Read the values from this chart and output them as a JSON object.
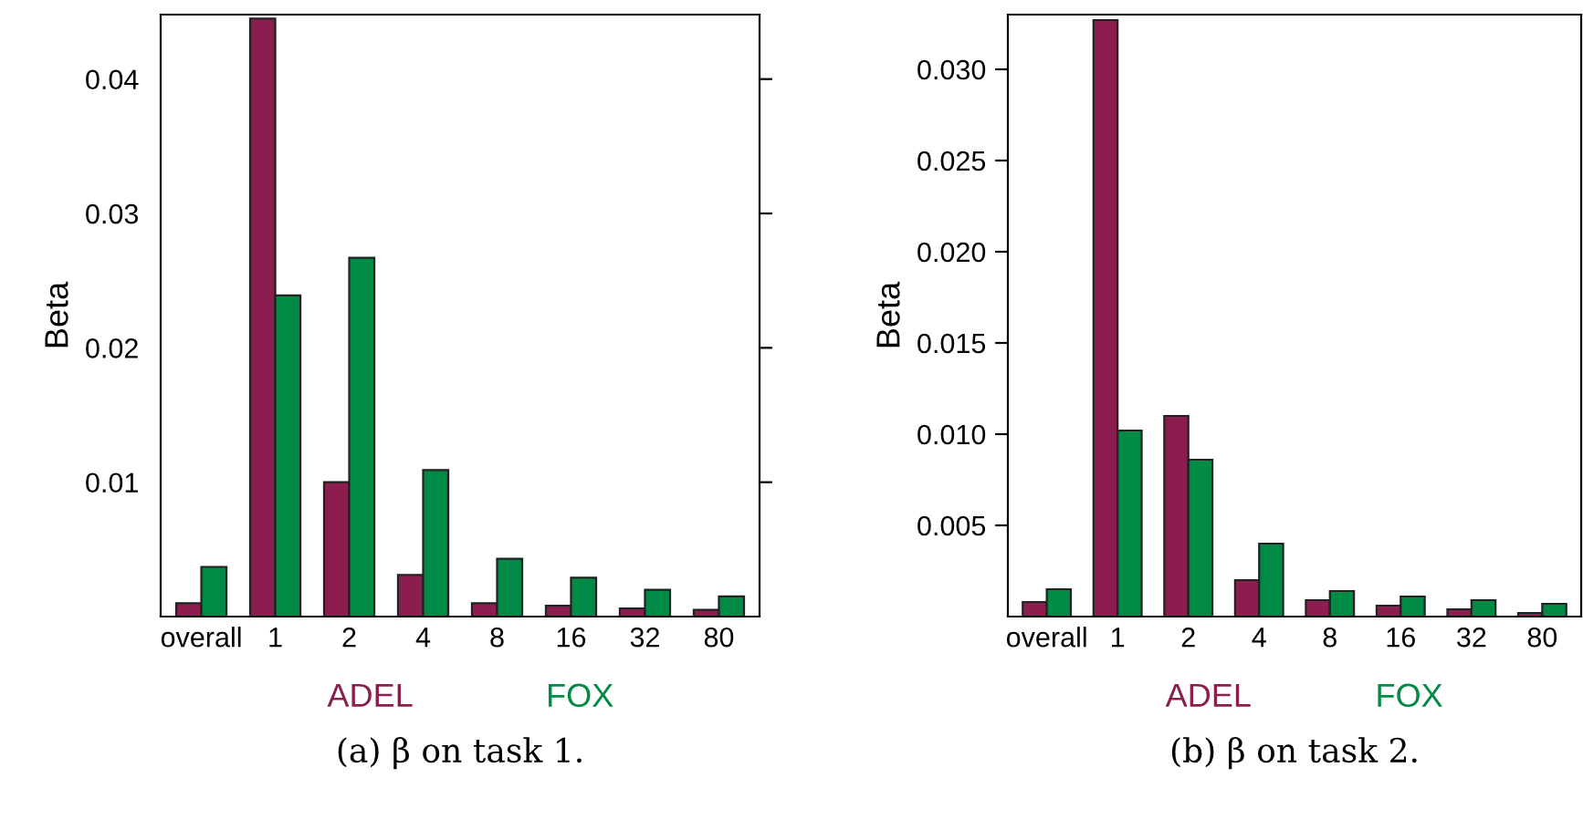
{
  "chart_data": [
    {
      "type": "bar",
      "ylabel": "Beta",
      "categories": [
        "overall",
        "1",
        "2",
        "4",
        "8",
        "16",
        "32",
        "80"
      ],
      "series": [
        {
          "name": "ADEL",
          "color": "#8b1e4f",
          "values": [
            0.001,
            0.0445,
            0.01,
            0.0031,
            0.001,
            0.0008,
            0.0006,
            0.0005
          ]
        },
        {
          "name": "FOX",
          "color": "#008a45",
          "values": [
            0.0037,
            0.0239,
            0.0267,
            0.0109,
            0.0043,
            0.0029,
            0.002,
            0.0015
          ]
        }
      ],
      "ylim": [
        0,
        0.0448
      ],
      "yticks": [
        0.01,
        0.02,
        0.03,
        0.04
      ],
      "legend": "bottom",
      "grid": false,
      "annotations": [
        "(a) β on task 1."
      ]
    },
    {
      "type": "bar",
      "ylabel": "Beta",
      "categories": [
        "overall",
        "1",
        "2",
        "4",
        "8",
        "16",
        "32",
        "80"
      ],
      "series": [
        {
          "name": "ADEL",
          "color": "#8b1e4f",
          "values": [
            0.0008,
            0.0327,
            0.011,
            0.002,
            0.0009,
            0.0006,
            0.0004,
            0.0002
          ]
        },
        {
          "name": "FOX",
          "color": "#008a45",
          "values": [
            0.0015,
            0.0102,
            0.0086,
            0.004,
            0.0014,
            0.0011,
            0.0009,
            0.0007
          ]
        }
      ],
      "ylim": [
        0,
        0.033
      ],
      "yticks": [
        {
          "value": 0.005,
          "label": "0.005"
        },
        {
          "value": 0.01,
          "label": "0.010"
        },
        {
          "value": 0.015,
          "label": "0.015"
        },
        {
          "value": 0.02,
          "label": "0.020"
        },
        {
          "value": 0.025,
          "label": "0.025"
        },
        {
          "value": 0.03,
          "label": "0.030"
        }
      ],
      "legend": "bottom",
      "grid": false,
      "annotations": [
        "(b) β on task 2."
      ]
    }
  ]
}
